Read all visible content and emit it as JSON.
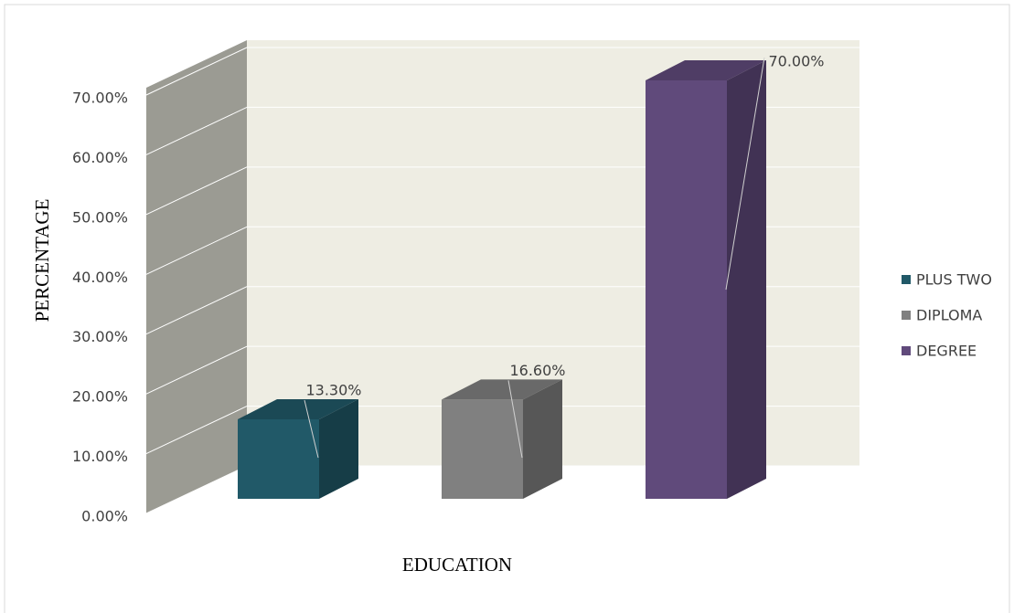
{
  "chart_data": {
    "type": "bar3d",
    "x_label": "EDUCATION",
    "y_label": "PERCENTAGE",
    "categories": [
      null
    ],
    "series": [
      {
        "name": "PLUS TWO",
        "color": "#215968",
        "values": [
          13.3
        ],
        "value_labels": [
          "13.30%"
        ]
      },
      {
        "name": "DIPLOMA",
        "color": "#808080",
        "values": [
          16.6
        ],
        "value_labels": [
          "16.60%"
        ]
      },
      {
        "name": "DEGREE",
        "color": "#604a7b",
        "values": [
          70.0
        ],
        "value_labels": [
          "70.00%"
        ]
      }
    ],
    "ylim": [
      0,
      70
    ],
    "yticks": [
      {
        "value": 0,
        "label": "0.00%"
      },
      {
        "value": 10,
        "label": "10.00%"
      },
      {
        "value": 20,
        "label": "20.00%"
      },
      {
        "value": 30,
        "label": "30.00%"
      },
      {
        "value": 40,
        "label": "40.00%"
      },
      {
        "value": 50,
        "label": "50.00%"
      },
      {
        "value": 60,
        "label": "60.00%"
      },
      {
        "value": 70,
        "label": "70.00%"
      }
    ],
    "grid": true,
    "legend": "right"
  }
}
